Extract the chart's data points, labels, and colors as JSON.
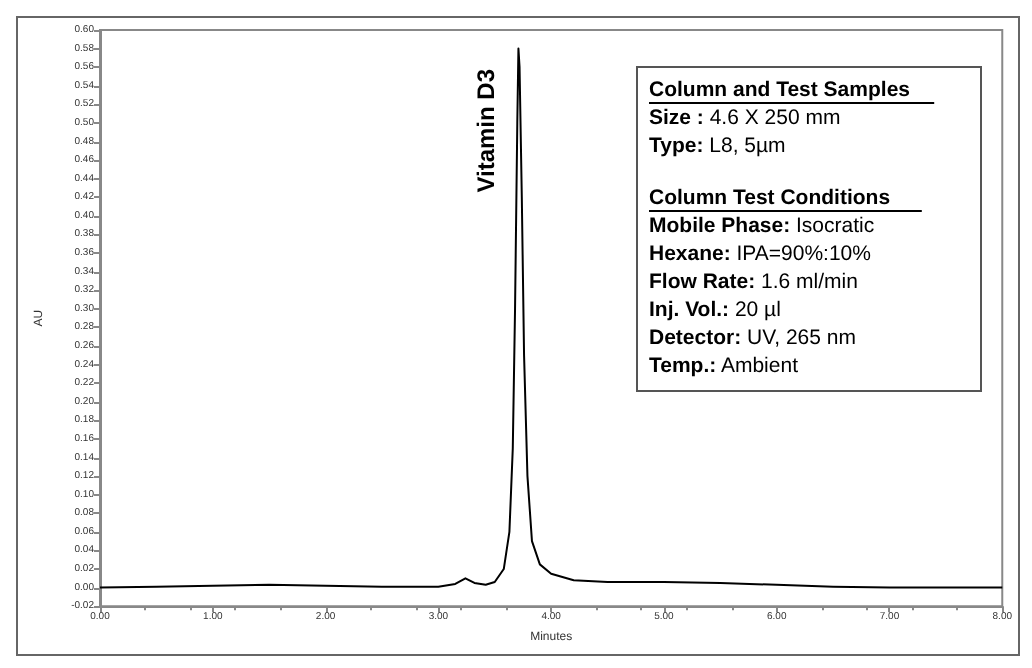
{
  "chart_data": {
    "type": "line",
    "xlabel": "Minutes",
    "ylabel": "AU",
    "x": [
      0,
      0.5,
      1.0,
      1.5,
      2.0,
      2.5,
      3.0,
      3.15,
      3.24,
      3.32,
      3.42,
      3.5,
      3.58,
      3.63,
      3.66,
      3.68,
      3.7,
      3.71,
      3.72,
      3.74,
      3.76,
      3.79,
      3.83,
      3.9,
      4.0,
      4.2,
      4.5,
      5.0,
      5.5,
      6.0,
      6.5,
      7.0,
      8.0
    ],
    "series": [
      {
        "color": "#000000",
        "values": [
          0.0,
          0.001,
          0.002,
          0.003,
          0.002,
          0.001,
          0.001,
          0.004,
          0.01,
          0.005,
          0.003,
          0.006,
          0.02,
          0.06,
          0.15,
          0.3,
          0.5,
          0.58,
          0.56,
          0.42,
          0.25,
          0.12,
          0.05,
          0.025,
          0.015,
          0.008,
          0.006,
          0.006,
          0.005,
          0.003,
          0.001,
          0.0,
          0.0
        ]
      }
    ],
    "xlim": [
      0,
      8
    ],
    "xticks": [
      {
        "value": 0,
        "label": "0.00"
      },
      {
        "value": 1,
        "label": "1.00"
      },
      {
        "value": 2,
        "label": "2.00"
      },
      {
        "value": 3,
        "label": "3.00"
      },
      {
        "value": 4,
        "label": "4.00"
      },
      {
        "value": 5,
        "label": "5.00"
      },
      {
        "value": 6,
        "label": "6.00"
      },
      {
        "value": 7,
        "label": "7.00"
      },
      {
        "value": 8,
        "label": "8.00"
      }
    ],
    "ylim": [
      -0.02,
      0.6
    ],
    "yticks": [
      {
        "value": -0.02,
        "label": "-0.02"
      },
      {
        "value": 0,
        "label": "0.00"
      },
      {
        "value": 0.02,
        "label": "0.02"
      },
      {
        "value": 0.04,
        "label": "0.04"
      },
      {
        "value": 0.06,
        "label": "0.06"
      },
      {
        "value": 0.08,
        "label": "0.08"
      },
      {
        "value": 0.1,
        "label": "0.10"
      },
      {
        "value": 0.12,
        "label": "0.12"
      },
      {
        "value": 0.14,
        "label": "0.14"
      },
      {
        "value": 0.16,
        "label": "0.16"
      },
      {
        "value": 0.18,
        "label": "0.18"
      },
      {
        "value": 0.2,
        "label": "0.20"
      },
      {
        "value": 0.22,
        "label": "0.22"
      },
      {
        "value": 0.24,
        "label": "0.24"
      },
      {
        "value": 0.26,
        "label": "0.26"
      },
      {
        "value": 0.28,
        "label": "0.28"
      },
      {
        "value": 0.3,
        "label": "0.30"
      },
      {
        "value": 0.32,
        "label": "0.32"
      },
      {
        "value": 0.34,
        "label": "0.34"
      },
      {
        "value": 0.36,
        "label": "0.36"
      },
      {
        "value": 0.38,
        "label": "0.38"
      },
      {
        "value": 0.4,
        "label": "0.40"
      },
      {
        "value": 0.42,
        "label": "0.42"
      },
      {
        "value": 0.44,
        "label": "0.44"
      },
      {
        "value": 0.46,
        "label": "0.46"
      },
      {
        "value": 0.48,
        "label": "0.48"
      },
      {
        "value": 0.5,
        "label": "0.50"
      },
      {
        "value": 0.52,
        "label": "0.52"
      },
      {
        "value": 0.54,
        "label": "0.54"
      },
      {
        "value": 0.56,
        "label": "0.56"
      },
      {
        "value": 0.58,
        "label": "0.58"
      },
      {
        "value": 0.6,
        "label": "0.60"
      }
    ],
    "annotations": [
      {
        "text": "Vitamin D3",
        "x": 3.71,
        "y": 0.58
      },
      "Column and Test Samples",
      "Size : 4.6 X 250 mm",
      "Type: L8, 5µm",
      "Column Test Conditions",
      "Mobile Phase: Isocratic",
      "Hexane: IPA=90%:10%",
      "Flow Rate: 1.6 ml/min",
      "Inj. Vol.: 20 µl",
      "Detector: UV, 265 nm",
      "Temp.: Ambient"
    ],
    "grid": false,
    "marker": "none",
    "line_style": "solid"
  }
}
